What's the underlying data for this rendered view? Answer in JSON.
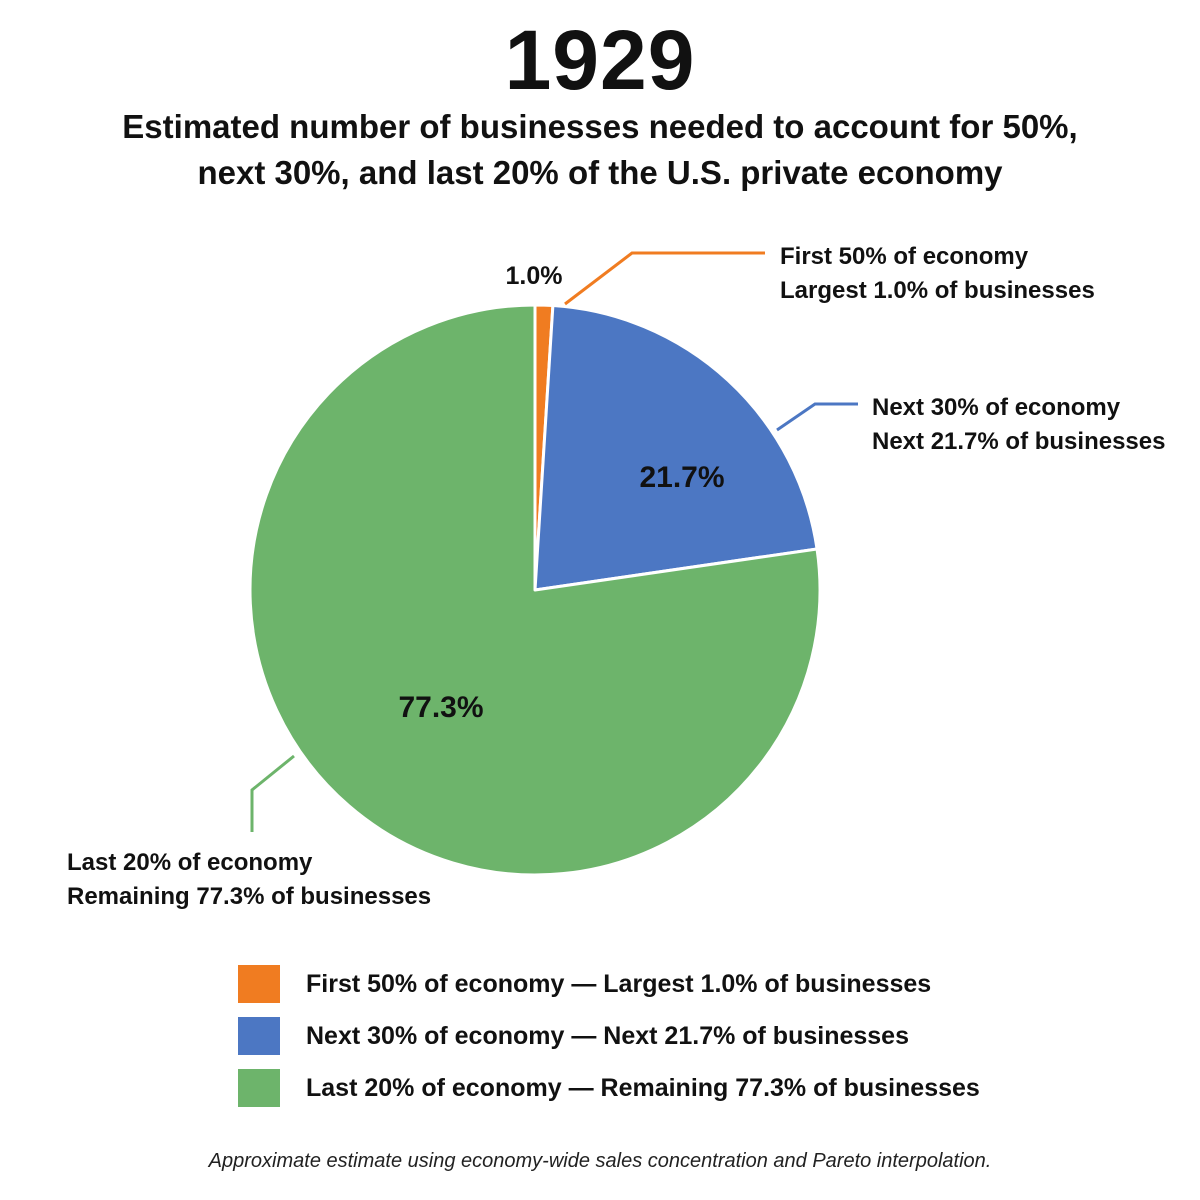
{
  "chart_data": {
    "type": "pie",
    "title": "1929",
    "subtitle": "Estimated number of businesses needed to account for 50%, next 30%, and last 20% of the U.S. private economy",
    "slices": [
      {
        "value": 1.0,
        "label": "1.0%",
        "color": "#F07C21",
        "callout": [
          "First 50% of economy",
          "Largest 1.0% of businesses"
        ],
        "legend": "First 50% of economy — Largest 1.0% of businesses"
      },
      {
        "value": 21.7,
        "label": "21.7%",
        "color": "#4C77C3",
        "callout": [
          "Next 30% of economy",
          "Next 21.7% of businesses"
        ],
        "legend": "Next 30% of economy — Next 21.7% of businesses"
      },
      {
        "value": 77.3,
        "label": "77.3%",
        "color": "#6DB46B",
        "callout": [
          "Last 20% of economy",
          "Remaining 77.3% of businesses"
        ],
        "legend": "Last 20% of economy — Remaining 77.3% of businesses"
      }
    ],
    "legend_position": "bottom",
    "footnote": "Approximate estimate using economy-wide sales concentration and Pareto interpolation."
  }
}
